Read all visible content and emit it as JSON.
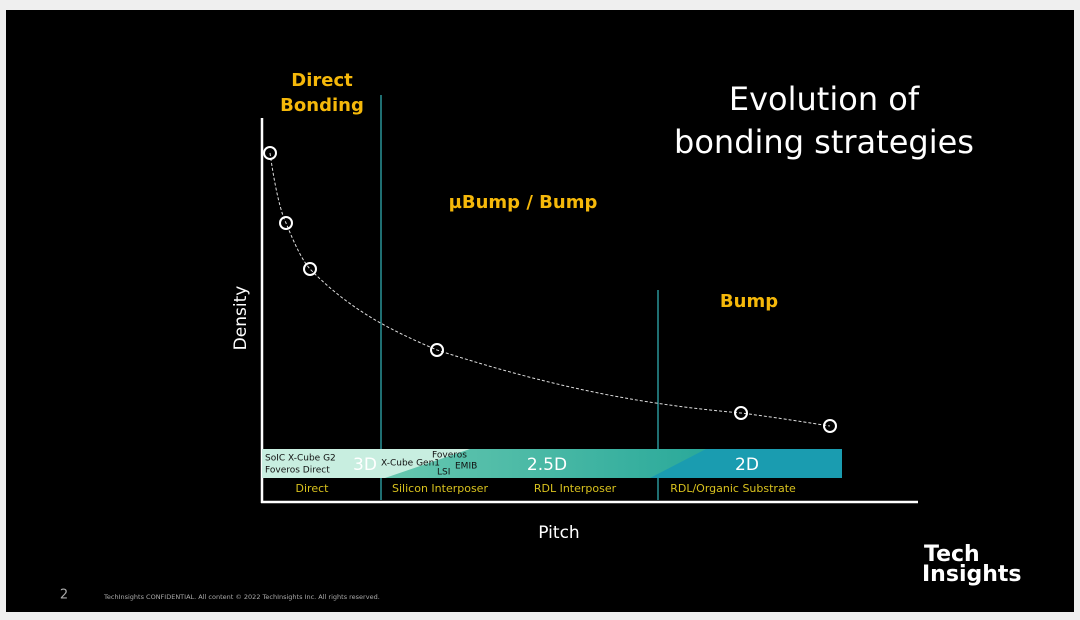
{
  "title": {
    "line1": "Evolution of",
    "line2": "bonding strategies"
  },
  "regions": {
    "direct": {
      "line1": "Direct",
      "line2": "Bonding"
    },
    "ubump": "µBump / Bump",
    "bump": "Bump"
  },
  "axes": {
    "y": "Density",
    "x": "Pitch"
  },
  "band": {
    "dimensions": {
      "three_d": "3D",
      "two_five_d": "2.5D",
      "two_d": "2D"
    },
    "technologies": {
      "soic": "SoIC X-Cube G2",
      "foveros_direct": "Foveros Direct",
      "xcube_gen1": "X-Cube Gen1",
      "foveros": "Foveros",
      "lsi": "LSI",
      "emib": "EMIB"
    },
    "interconnects": [
      "Direct",
      "Silicon Interposer",
      "RDL Interposer",
      "RDL/Organic Substrate"
    ]
  },
  "footer": {
    "page": "2",
    "notice": "TechInsights CONFIDENTIAL. All content © 2022 TechInsights Inc. All rights reserved."
  },
  "logo": {
    "line1": "Tech",
    "line2": "Insights"
  }
}
